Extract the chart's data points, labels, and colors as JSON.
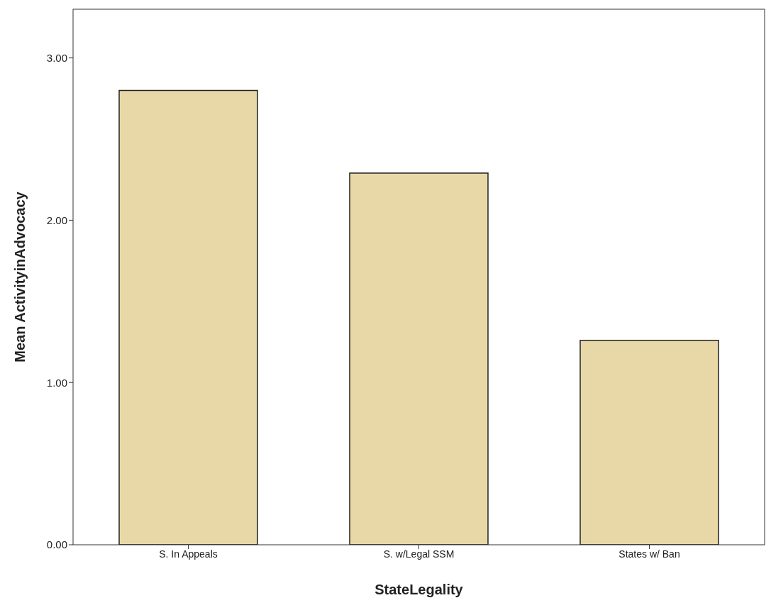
{
  "chart_data": {
    "type": "bar",
    "xlabel": "StateLegality",
    "ylabel": "Mean ActivityinAdvocacy",
    "categories": [
      "S. In Appeals",
      "S. w/Legal SSM",
      "States w/ Ban"
    ],
    "values": [
      2.8,
      2.29,
      1.26
    ],
    "color": "#e8d8a8",
    "ylim": [
      0,
      3.3
    ],
    "yticks": [
      {
        "value": 0,
        "label": "0.00"
      },
      {
        "value": 1,
        "label": "1.00"
      },
      {
        "value": 2,
        "label": "2.00"
      },
      {
        "value": 3,
        "label": "3.00"
      }
    ],
    "grid": false
  }
}
